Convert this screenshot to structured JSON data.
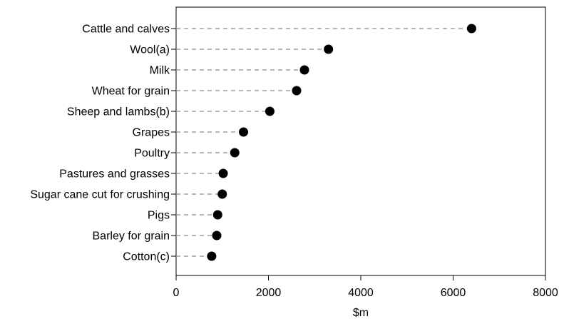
{
  "chart_data": {
    "type": "scatter",
    "title": "",
    "xlabel": "$m",
    "ylabel": "",
    "xlim": [
      0,
      8000
    ],
    "xticks": [
      0,
      2000,
      4000,
      6000,
      8000
    ],
    "grid": false,
    "leader_lines": "dashed",
    "marker_color": "#000000",
    "categories": [
      "Cattle and calves",
      "Wool(a)",
      "Milk",
      "Wheat for grain",
      "Sheep and lambs(b)",
      "Grapes",
      "Poultry",
      "Pastures and grasses",
      "Sugar cane cut for crushing",
      "Pigs",
      "Barley for grain",
      "Cotton(c)"
    ],
    "values": [
      6400,
      3300,
      2780,
      2610,
      2030,
      1460,
      1270,
      1020,
      1000,
      900,
      880,
      770
    ]
  }
}
